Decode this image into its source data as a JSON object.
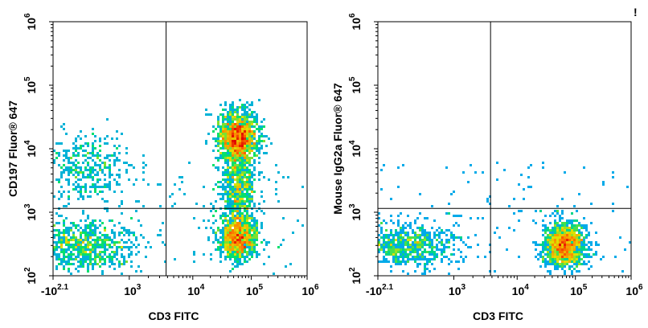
{
  "chart_data": [
    {
      "type": "scatter",
      "subtype": "flow-cytometry-density-dot-plot",
      "title": "",
      "xlabel": "CD3 FITC",
      "ylabel": "CD197 Fluor® 647",
      "x_scale": "biexponential",
      "y_scale": "log",
      "xlim": [
        -125.9,
        1000000
      ],
      "ylim": [
        100,
        1000000
      ],
      "x_ticks": [
        {
          "base": "-10",
          "exp": "2.1"
        },
        {
          "base": "10",
          "exp": "3"
        },
        {
          "base": "10",
          "exp": "4"
        },
        {
          "base": "10",
          "exp": "5"
        },
        {
          "base": "10",
          "exp": "6"
        }
      ],
      "y_ticks": [
        {
          "base": "10",
          "exp": "2"
        },
        {
          "base": "10",
          "exp": "3"
        },
        {
          "base": "10",
          "exp": "4"
        },
        {
          "base": "10",
          "exp": "5"
        },
        {
          "base": "10",
          "exp": "6"
        }
      ],
      "gate": {
        "x": 3800,
        "y": 1150
      },
      "populations": [
        {
          "x_center": 300,
          "y_center": 300,
          "x_spread": "0.7 decade",
          "y_spread": "0.3 decade",
          "relative_density": 0.55
        },
        {
          "x_center": 300,
          "y_center": 5000,
          "x_spread": "0.7 decade",
          "y_spread": "0.45 decade",
          "relative_density": 0.3
        },
        {
          "x_center": 60000,
          "y_center": 15000,
          "x_spread": "0.2 decade",
          "y_spread": "0.3 decade",
          "relative_density": 1.0
        },
        {
          "x_center": 60000,
          "y_center": 2500,
          "x_spread": "0.18 decade",
          "y_spread": "0.5 decade",
          "relative_density": 0.45
        },
        {
          "x_center": 60000,
          "y_center": 400,
          "x_spread": "0.18 decade",
          "y_spread": "0.25 decade",
          "relative_density": 0.7
        }
      ],
      "color_scale": [
        "#0000c8",
        "#00a0ff",
        "#00e070",
        "#e0e000",
        "#ff8000",
        "#e00000"
      ]
    },
    {
      "type": "scatter",
      "subtype": "flow-cytometry-density-dot-plot",
      "title": "",
      "xlabel": "CD3 FITC",
      "ylabel": "Mouse IgG2a  Fluor® 647",
      "x_scale": "biexponential",
      "y_scale": "log",
      "xlim": [
        -125.9,
        1000000
      ],
      "ylim": [
        100,
        1000000
      ],
      "x_ticks": [
        {
          "base": "-10",
          "exp": "2.1"
        },
        {
          "base": "10",
          "exp": "3"
        },
        {
          "base": "10",
          "exp": "4"
        },
        {
          "base": "10",
          "exp": "5"
        },
        {
          "base": "10",
          "exp": "6"
        }
      ],
      "y_ticks": [
        {
          "base": "10",
          "exp": "2"
        },
        {
          "base": "10",
          "exp": "3"
        },
        {
          "base": "10",
          "exp": "4"
        },
        {
          "base": "10",
          "exp": "5"
        },
        {
          "base": "10",
          "exp": "6"
        }
      ],
      "gate": {
        "x": 3800,
        "y": 1150
      },
      "populations": [
        {
          "x_center": 250,
          "y_center": 300,
          "x_spread": "0.7 decade",
          "y_spread": "0.25 decade",
          "relative_density": 0.55
        },
        {
          "x_center": 65000,
          "y_center": 300,
          "x_spread": "0.2 decade",
          "y_spread": "0.25 decade",
          "relative_density": 1.0
        }
      ],
      "color_scale": [
        "#0000c8",
        "#00a0ff",
        "#00e070",
        "#e0e000",
        "#ff8000",
        "#e00000"
      ]
    }
  ],
  "corner_mark": "!"
}
